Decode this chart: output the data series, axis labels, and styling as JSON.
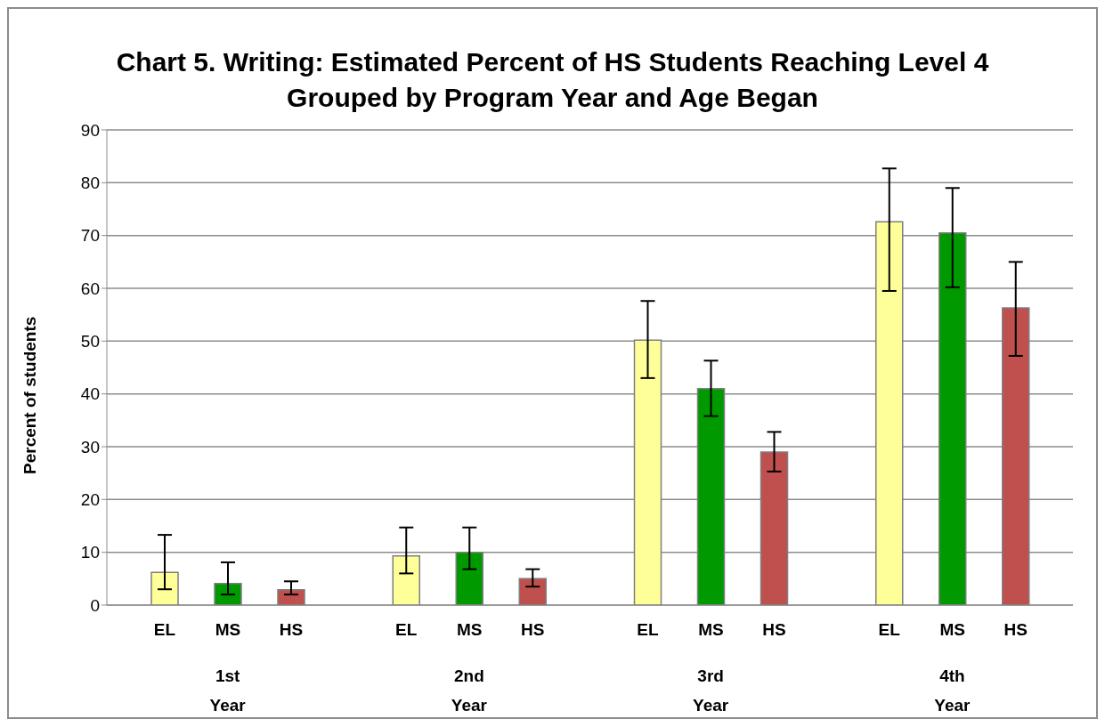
{
  "chart_data": {
    "type": "bar",
    "title": "Chart 5. Writing: Estimated Percent of HS Students Reaching Level 4 Grouped by Program Year and Age Began",
    "ylabel": "Percent of students",
    "categories": [
      "1st Year",
      "2nd Year",
      "3rd Year",
      "4th Year"
    ],
    "series": [
      {
        "name": "EL",
        "color": "#ffff99",
        "values": [
          6.2,
          9.3,
          50.2,
          72.6
        ],
        "errors": [
          [
            3,
            13.3
          ],
          [
            6,
            14.7
          ],
          [
            43,
            57.6
          ],
          [
            59.5,
            82.7
          ]
        ]
      },
      {
        "name": "MS",
        "color": "#009900",
        "values": [
          4.1,
          10,
          41,
          70.5
        ],
        "errors": [
          [
            2,
            8.1
          ],
          [
            6.8,
            14.7
          ],
          [
            35.8,
            46.3
          ],
          [
            60.2,
            79
          ]
        ]
      },
      {
        "name": "HS",
        "color": "#c0504d",
        "values": [
          2.9,
          5,
          29,
          56.3
        ],
        "errors": [
          [
            2,
            4.5
          ],
          [
            3.5,
            6.8
          ],
          [
            25.3,
            32.8
          ],
          [
            47.2,
            65
          ]
        ]
      }
    ],
    "ylim": [
      0,
      90
    ],
    "yticks": [
      0,
      10,
      20,
      30,
      40,
      50,
      60,
      70,
      80,
      90
    ],
    "grid": "y",
    "legend": false
  }
}
